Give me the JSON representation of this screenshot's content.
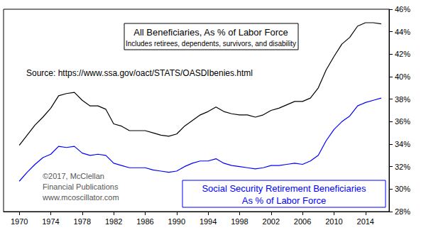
{
  "chart_data": {
    "type": "line",
    "x": [
      1970,
      1971,
      1972,
      1973,
      1974,
      1975,
      1976,
      1977,
      1978,
      1979,
      1980,
      1981,
      1982,
      1983,
      1984,
      1985,
      1986,
      1987,
      1988,
      1989,
      1990,
      1991,
      1992,
      1993,
      1994,
      1995,
      1996,
      1997,
      1998,
      1999,
      2000,
      2001,
      2002,
      2003,
      2004,
      2005,
      2006,
      2007,
      2008,
      2009,
      2010,
      2011,
      2012,
      2013,
      2014,
      2015,
      2016
    ],
    "series": [
      {
        "color": "#000000",
        "values": [
          33.9,
          34.8,
          35.7,
          36.4,
          37.2,
          38.3,
          38.5,
          38.6,
          37.9,
          37.4,
          37.4,
          37.1,
          35.8,
          35.6,
          35.2,
          35.2,
          35.2,
          35.0,
          34.8,
          34.7,
          34.9,
          35.6,
          36.1,
          36.6,
          36.9,
          37.3,
          36.9,
          36.7,
          36.6,
          36.6,
          36.4,
          36.6,
          37.0,
          37.2,
          37.5,
          37.8,
          37.8,
          38.1,
          39.0,
          40.6,
          41.8,
          42.9,
          43.5,
          44.5,
          44.8,
          44.8,
          44.7
        ]
      },
      {
        "color": "#0000ff",
        "values": [
          30.7,
          31.5,
          32.2,
          32.8,
          33.1,
          33.8,
          33.7,
          33.8,
          33.2,
          33.0,
          33.1,
          33.0,
          32.3,
          32.1,
          31.9,
          31.9,
          31.9,
          31.7,
          31.6,
          31.5,
          31.6,
          32.0,
          32.3,
          32.5,
          32.5,
          32.7,
          32.3,
          32.1,
          32.0,
          31.9,
          31.8,
          31.9,
          32.1,
          32.1,
          32.2,
          32.3,
          32.2,
          32.5,
          33.0,
          34.3,
          35.3,
          36.0,
          36.5,
          37.4,
          37.7,
          37.9,
          38.1
        ]
      }
    ],
    "xlim": [
      1968,
      2017
    ],
    "xticks": [
      1970,
      1974,
      1978,
      1982,
      1986,
      1990,
      1994,
      1998,
      2002,
      2006,
      2010,
      2014
    ],
    "ylim": [
      28,
      46
    ],
    "yticks": [
      {
        "value": 28,
        "label": "28%"
      },
      {
        "value": 30,
        "label": "30%"
      },
      {
        "value": 32,
        "label": "32%"
      },
      {
        "value": 34,
        "label": "34%"
      },
      {
        "value": 36,
        "label": "36%"
      },
      {
        "value": 38,
        "label": "38%"
      },
      {
        "value": 40,
        "label": "40%"
      },
      {
        "value": 42,
        "label": "42%"
      },
      {
        "value": 44,
        "label": "44%"
      },
      {
        "value": 46,
        "label": "46%"
      }
    ],
    "grid": false,
    "annotations": [
      {
        "text": "All Beneficiaries, As % of Labor Force",
        "color": "#000000"
      },
      {
        "text": "Includes retirees, dependents, survivors, and disability",
        "color": "#000000"
      },
      {
        "text": "Source: https://www.ssa.gov/oact/STATS/OASDIbenies.html",
        "color": "#000000"
      },
      {
        "text": "©2017, McClellan",
        "color": "#555555"
      },
      {
        "text": "Financial Publications",
        "color": "#555555"
      },
      {
        "text": "www.mcoscillator.com",
        "color": "#555555"
      },
      {
        "text": "Social Security Retirement Beneficiaries",
        "color": "#0000ff"
      },
      {
        "text": "As % of Labor Force",
        "color": "#0000ff"
      }
    ]
  }
}
